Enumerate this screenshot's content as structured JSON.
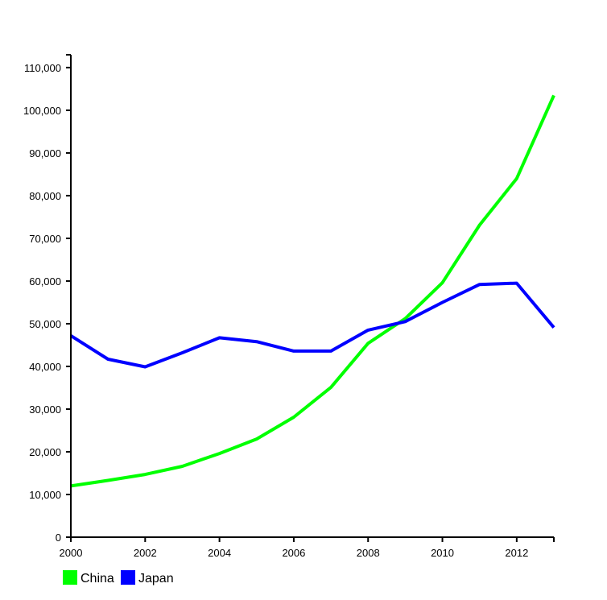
{
  "chart_data": {
    "type": "line",
    "title": "",
    "xlabel": "",
    "ylabel": "",
    "x": [
      2000,
      2001,
      2002,
      2003,
      2004,
      2005,
      2006,
      2007,
      2008,
      2009,
      2010,
      2011,
      2012,
      2013
    ],
    "xlim": [
      2000,
      2013
    ],
    "ylim": [
      0,
      113000
    ],
    "x_ticks": [
      2000,
      2002,
      2004,
      2006,
      2008,
      2010,
      2012
    ],
    "x_tick_labels": [
      "2000",
      "2002",
      "2004",
      "2006",
      "2008",
      "2010",
      "2012"
    ],
    "y_ticks": [
      0,
      10000,
      20000,
      30000,
      40000,
      50000,
      60000,
      70000,
      80000,
      90000,
      100000,
      110000
    ],
    "y_tick_labels": [
      "0",
      "10,000",
      "20,000",
      "30,000",
      "40,000",
      "50,000",
      "60,000",
      "70,000",
      "80,000",
      "90,000",
      "100,000",
      "110,000"
    ],
    "grid": false,
    "legend": "bottom-left",
    "series": [
      {
        "name": "China",
        "color": "#00ff00",
        "values": [
          12000,
          13300,
          14700,
          16600,
          19600,
          23000,
          28100,
          35100,
          45400,
          51200,
          59600,
          73100,
          84000,
          103500
        ]
      },
      {
        "name": "Japan",
        "color": "#0000ff",
        "values": [
          47200,
          41700,
          39900,
          43200,
          46700,
          45800,
          43600,
          43600,
          48500,
          50500,
          55000,
          59200,
          59500,
          49100
        ]
      }
    ]
  }
}
